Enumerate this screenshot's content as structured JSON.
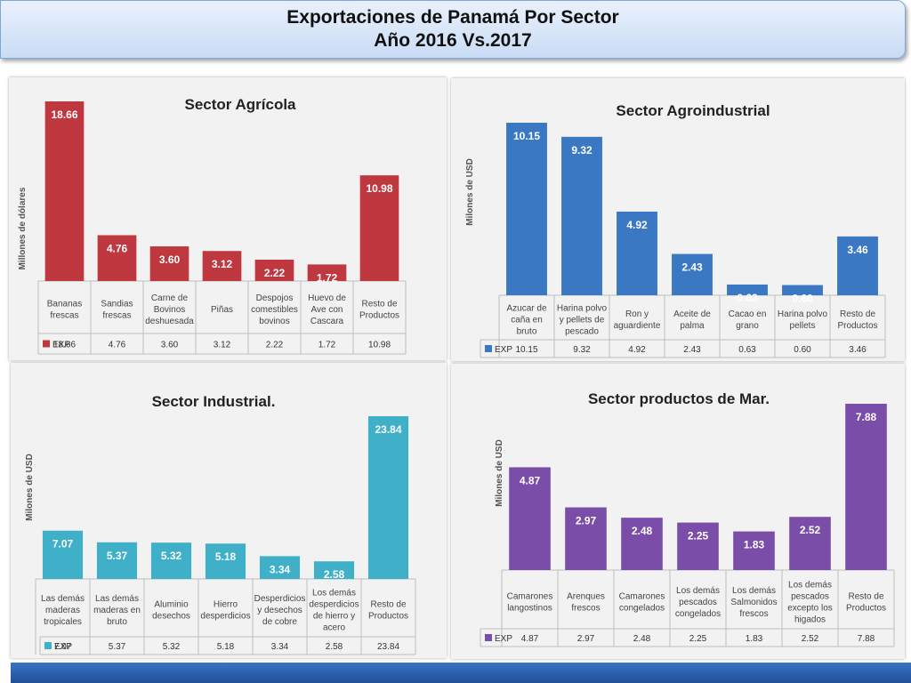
{
  "header": {
    "title_line1": "Exportaciones de Panamá Por Sector",
    "title_line2": "Año 2016 Vs.2017"
  },
  "chart_data": [
    {
      "type": "bar",
      "title": "Sector Agrícola",
      "ylabel": "Millones de dólares",
      "legend": "EXP",
      "color": "#c0383f",
      "categories": [
        [
          "Bananas",
          "frescas"
        ],
        [
          "Sandias",
          "frescas"
        ],
        [
          "Carne de",
          "Bovinos",
          "deshuesada"
        ],
        [
          "Piñas"
        ],
        [
          "Despojos",
          "comestibles",
          "bovinos"
        ],
        [
          "Huevo de",
          "Ave con",
          "Cascara"
        ],
        [
          "Resto de",
          "Productos"
        ]
      ],
      "values": [
        18.66,
        4.76,
        3.6,
        3.12,
        2.22,
        1.72,
        10.98
      ],
      "labels": [
        "18.66",
        "4.76",
        "3.60",
        "3.12",
        "2.22",
        "1.72",
        "10.98"
      ]
    },
    {
      "type": "bar",
      "title": "Sector Agroindustrial",
      "ylabel": "Milones de USD",
      "legend": "EXP",
      "color": "#3a78c3",
      "categories": [
        [
          "Azucar de",
          "caña en",
          "bruto"
        ],
        [
          "Harina polvo",
          "y pellets de",
          "pescado"
        ],
        [
          "Ron y",
          "aguardiente"
        ],
        [
          "Aceite de",
          "palma"
        ],
        [
          "Cacao en",
          "grano"
        ],
        [
          "Harina polvo",
          "pellets"
        ],
        [
          "Resto de",
          "Productos"
        ]
      ],
      "values": [
        10.15,
        9.32,
        4.92,
        2.43,
        0.63,
        0.6,
        3.46
      ],
      "labels": [
        "10.15",
        "9.32",
        "4.92",
        "2.43",
        "0.63",
        "0.60",
        "3.46"
      ]
    },
    {
      "type": "bar",
      "title": "Sector Industrial.",
      "ylabel": "Milones de USD",
      "legend": "EXP",
      "color": "#3fb0c8",
      "categories": [
        [
          "Las demás",
          "maderas",
          "tropicales"
        ],
        [
          "Las demás",
          "maderas en",
          "bruto"
        ],
        [
          "Aluminio",
          "desechos"
        ],
        [
          "Hierro",
          "desperdicios"
        ],
        [
          "Desperdicios",
          "y desechos",
          "de cobre"
        ],
        [
          "Los demás",
          "desperdicios",
          "de hierro y",
          "acero"
        ],
        [
          "Resto de",
          "Productos"
        ]
      ],
      "values": [
        7.07,
        5.37,
        5.32,
        5.18,
        3.34,
        2.58,
        23.84
      ],
      "labels": [
        "7.07",
        "5.37",
        "5.32",
        "5.18",
        "3.34",
        "2.58",
        "23.84"
      ]
    },
    {
      "type": "bar",
      "title": "Sector productos  de Mar.",
      "ylabel": "Milones de USD",
      "legend": "EXP",
      "color": "#7a4ea8",
      "categories": [
        [
          "Camarones",
          "langostinos"
        ],
        [
          "Arenques",
          "frescos"
        ],
        [
          "Camarones",
          "congelados"
        ],
        [
          "Los demás",
          "pescados",
          "congelados"
        ],
        [
          "Los demás",
          "Salmonidos",
          "frescos"
        ],
        [
          "Los demás",
          "pescados",
          "excepto los",
          "higados"
        ],
        [
          "Resto de",
          "Productos"
        ]
      ],
      "values": [
        4.87,
        2.97,
        2.48,
        2.25,
        1.83,
        2.52,
        7.88
      ],
      "labels": [
        "4.87",
        "2.97",
        "2.48",
        "2.25",
        "1.83",
        "2.52",
        "7.88"
      ]
    }
  ]
}
